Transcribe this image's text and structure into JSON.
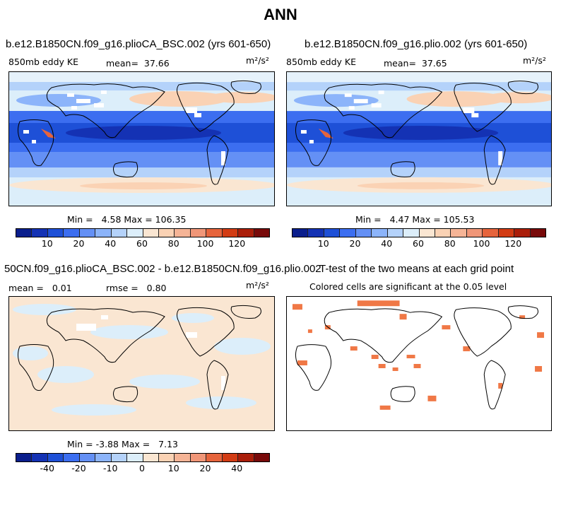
{
  "main_title": "ANN",
  "units": "m²/s²",
  "panels": {
    "p1": {
      "title": "b.e12.B1850CN.f09_g16.plioCA_BSC.002 (yrs 601-650)",
      "variable": "850mb eddy KE",
      "mean_label": "mean=",
      "mean_value": "37.66",
      "min_label": "Min =",
      "min_value": "4.58",
      "max_label": "Max =",
      "max_value": "106.35"
    },
    "p2": {
      "title": "b.e12.B1850CN.f09_g16.plio.002 (yrs 601-650)",
      "variable": "850mb eddy KE",
      "mean_label": "mean=",
      "mean_value": "37.65",
      "min_label": "Min =",
      "min_value": "4.47",
      "max_label": "Max =",
      "max_value": "105.53"
    },
    "p3": {
      "title": "50CN.f09_g16.plioCA_BSC.002 - b.e12.B1850CN.f09_g16.plio.002",
      "mean_label": "mean =",
      "mean_value": "0.01",
      "rmse_label": "rmse =",
      "rmse_value": "0.80",
      "min_label": "Min =",
      "min_value": "-3.88",
      "max_label": "Max =",
      "max_value": "7.13"
    },
    "p4": {
      "title": "T-test of the two means at each grid point",
      "subtitle": "Colored cells are significant at the 0.05 level"
    }
  },
  "colorbar_abs": {
    "ticks": [
      "10",
      "20",
      "40",
      "60",
      "80",
      "100",
      "120"
    ],
    "colors": [
      "#0a1e8c",
      "#1432b4",
      "#1e50d7",
      "#3c6ef0",
      "#6490f5",
      "#8cb4fa",
      "#b4d2fa",
      "#dceefa",
      "#fae6d2",
      "#fad2b4",
      "#f5b496",
      "#f09678",
      "#e6643c",
      "#d23c14",
      "#aa1e0a",
      "#780a0a"
    ]
  },
  "colorbar_diff": {
    "ticks": [
      "-40",
      "-20",
      "-10",
      "0",
      "10",
      "20",
      "40"
    ],
    "colors": [
      "#0a1e8c",
      "#1432b4",
      "#1e50d7",
      "#3c6ef0",
      "#6490f5",
      "#8cb4fa",
      "#b4d2fa",
      "#dceefa",
      "#fae6d2",
      "#fad2b4",
      "#f5b496",
      "#f09678",
      "#e6643c",
      "#d23c14",
      "#aa1e0a",
      "#780a0a"
    ]
  },
  "chart_data": [
    {
      "type": "heatmap",
      "title": "b.e12.B1850CN.f09_g16.plioCA_BSC.002 (yrs 601-650)",
      "variable": "850mb eddy KE",
      "units": "m^2/s^2",
      "mean": 37.66,
      "min": 4.58,
      "max": 106.35,
      "colorbar_ticks": [
        10,
        20,
        40,
        60,
        80,
        100,
        120
      ]
    },
    {
      "type": "heatmap",
      "title": "b.e12.B1850CN.f09_g16.plio.002 (yrs 601-650)",
      "variable": "850mb eddy KE",
      "units": "m^2/s^2",
      "mean": 37.65,
      "min": 4.47,
      "max": 105.53,
      "colorbar_ticks": [
        10,
        20,
        40,
        60,
        80,
        100,
        120
      ]
    },
    {
      "type": "heatmap",
      "title": "50CN.f09_g16.plioCA_BSC.002 - b.e12.B1850CN.f09_g16.plio.002",
      "units": "m^2/s^2",
      "mean": 0.01,
      "rmse": 0.8,
      "min": -3.88,
      "max": 7.13,
      "colorbar_ticks": [
        -40,
        -20,
        -10,
        0,
        10,
        20,
        40
      ]
    },
    {
      "type": "heatmap",
      "title": "T-test of the two means at each grid point",
      "subtitle": "Colored cells are significant at the 0.05 level",
      "significance_level": 0.05,
      "significant_color": "#f07846"
    }
  ]
}
